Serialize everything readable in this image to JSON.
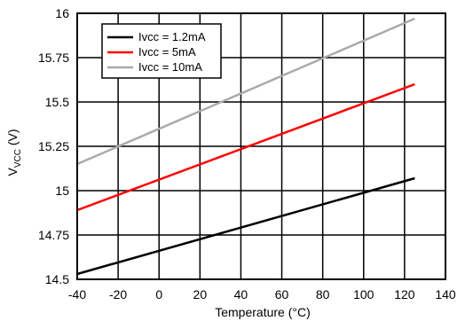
{
  "chart_data": {
    "type": "line",
    "xlabel": "Temperature (°C)",
    "ylabel_main": "V",
    "ylabel_sub": "VCC",
    "ylabel_unit": " (V)",
    "xlim": [
      -40,
      140
    ],
    "ylim": [
      14.5,
      16
    ],
    "x_ticks": [
      -40,
      -20,
      0,
      20,
      40,
      60,
      80,
      100,
      120,
      140
    ],
    "y_ticks": [
      14.5,
      14.75,
      15,
      15.25,
      15.5,
      15.75,
      16
    ],
    "x_tick_labels": [
      "-40",
      "-20",
      "0",
      "20",
      "40",
      "60",
      "80",
      "100",
      "120",
      "140"
    ],
    "y_tick_labels": [
      "14.5",
      "14.75",
      "15",
      "15.25",
      "15.5",
      "15.75",
      "16"
    ],
    "grid": true,
    "legend_position": "top-left",
    "series": [
      {
        "name": "Ivcc = 1.2mA",
        "color": "#000000",
        "x": [
          -40,
          125
        ],
        "y": [
          14.53,
          15.07
        ]
      },
      {
        "name": "Ivcc = 5mA",
        "color": "#ff0000",
        "x": [
          -40,
          125
        ],
        "y": [
          14.89,
          15.6
        ]
      },
      {
        "name": "Ivcc = 10mA",
        "color": "#aaaaaa",
        "x": [
          -40,
          125
        ],
        "y": [
          15.15,
          15.97
        ]
      }
    ]
  }
}
